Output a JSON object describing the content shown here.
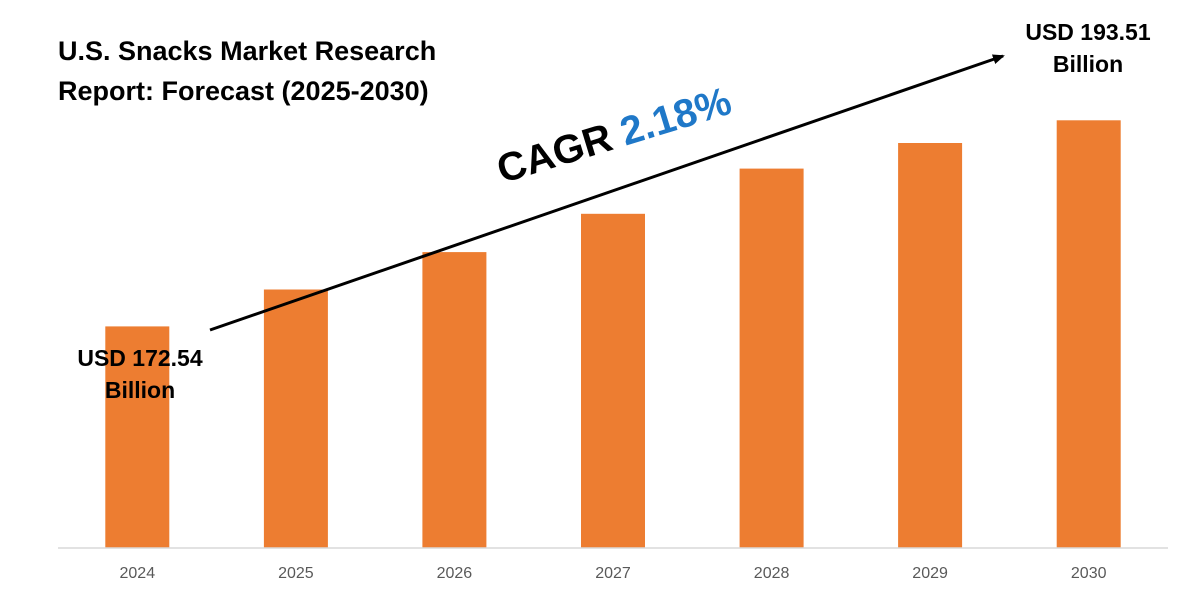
{
  "title_lines": [
    "U.S. Snacks Market Research",
    "Report: Forecast (2025-2030)"
  ],
  "callouts": {
    "start": {
      "line1": "USD 172.54",
      "line2": "Billion"
    },
    "end": {
      "line1": "USD 193.51",
      "line2": "Billion"
    }
  },
  "cagr": {
    "label": "CAGR",
    "value": "2.18%"
  },
  "colors": {
    "bar": "#ed7d31",
    "cagr_value": "#1f78c8",
    "axis": "#d9d9d9",
    "tick_text": "#595959",
    "arrow": "#000000"
  },
  "chart_data": {
    "type": "bar",
    "title": "U.S. Snacks Market Research Report: Forecast (2025-2030)",
    "categories": [
      "2024",
      "2025",
      "2026",
      "2027",
      "2028",
      "2029",
      "2030"
    ],
    "values": [
      172.54,
      176.3,
      180.1,
      184.0,
      188.6,
      191.2,
      193.51
    ],
    "unit": "USD Billion",
    "ylim": [
      150,
      197
    ],
    "xlabel": "",
    "ylabel": "",
    "grid": false,
    "legend": "none"
  }
}
